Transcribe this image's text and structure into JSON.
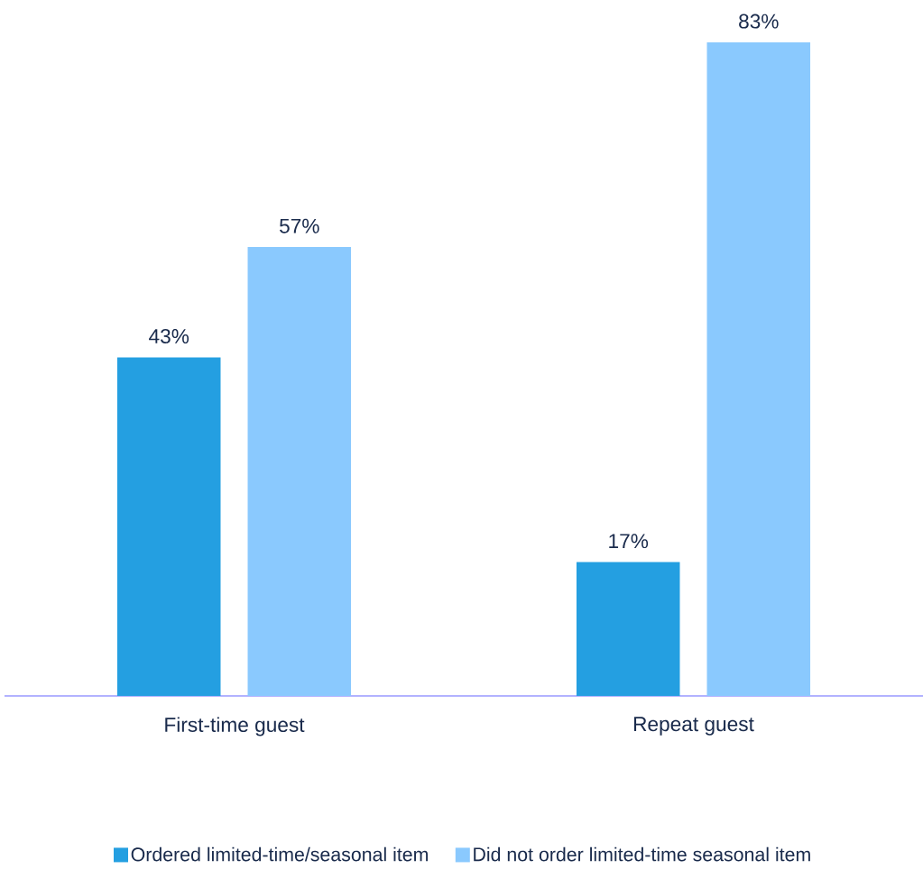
{
  "chart_data": {
    "type": "bar",
    "categories": [
      "First-time guest",
      "Repeat guest"
    ],
    "series": [
      {
        "name": "Ordered limited-time/seasonal item",
        "color": "#249fe1",
        "values": [
          43,
          17
        ],
        "value_labels": [
          "43%",
          "17%"
        ]
      },
      {
        "name": "Did not order limited-time seasonal item",
        "color": "#8ac9fe",
        "values": [
          57,
          83
        ],
        "value_labels": [
          "57%",
          "83%"
        ]
      }
    ],
    "legend": "bottom"
  }
}
